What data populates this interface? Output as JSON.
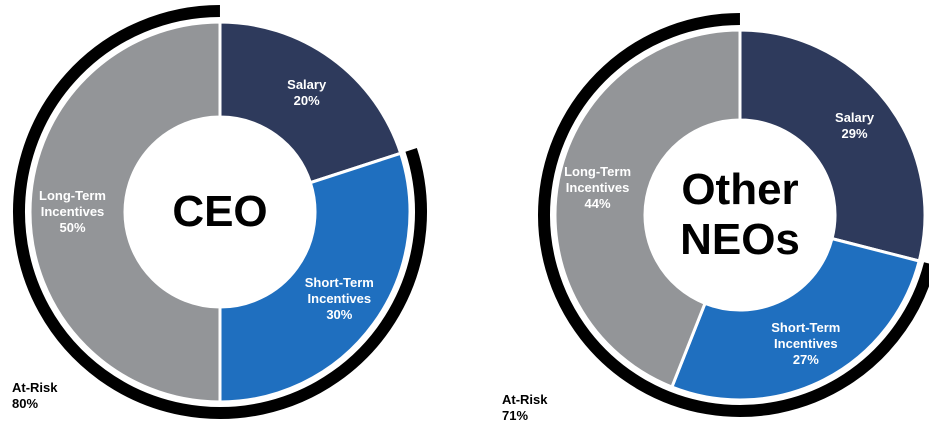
{
  "chart_data": [
    {
      "type": "donut",
      "title": "CEO",
      "categories": [
        "Salary",
        "Short-Term Incentives",
        "Long-Term Incentives"
      ],
      "values": [
        20,
        30,
        50
      ],
      "value_labels": [
        "20%",
        "30%",
        "50%"
      ],
      "colors": [
        "#2e3a5c",
        "#1f6fbf",
        "#939598"
      ],
      "at_risk": {
        "label": "At-Risk",
        "value": 80,
        "value_label": "80%",
        "color": "#000000"
      }
    },
    {
      "type": "donut",
      "title": "Other NEOs",
      "categories": [
        "Salary",
        "Short-Term Incentives",
        "Long-Term Incentives"
      ],
      "values": [
        29,
        27,
        44
      ],
      "value_labels": [
        "29%",
        "27%",
        "44%"
      ],
      "colors": [
        "#2e3a5c",
        "#1f6fbf",
        "#939598"
      ],
      "at_risk": {
        "label": "At-Risk",
        "value": 71,
        "value_label": "71%",
        "color": "#000000"
      }
    }
  ]
}
